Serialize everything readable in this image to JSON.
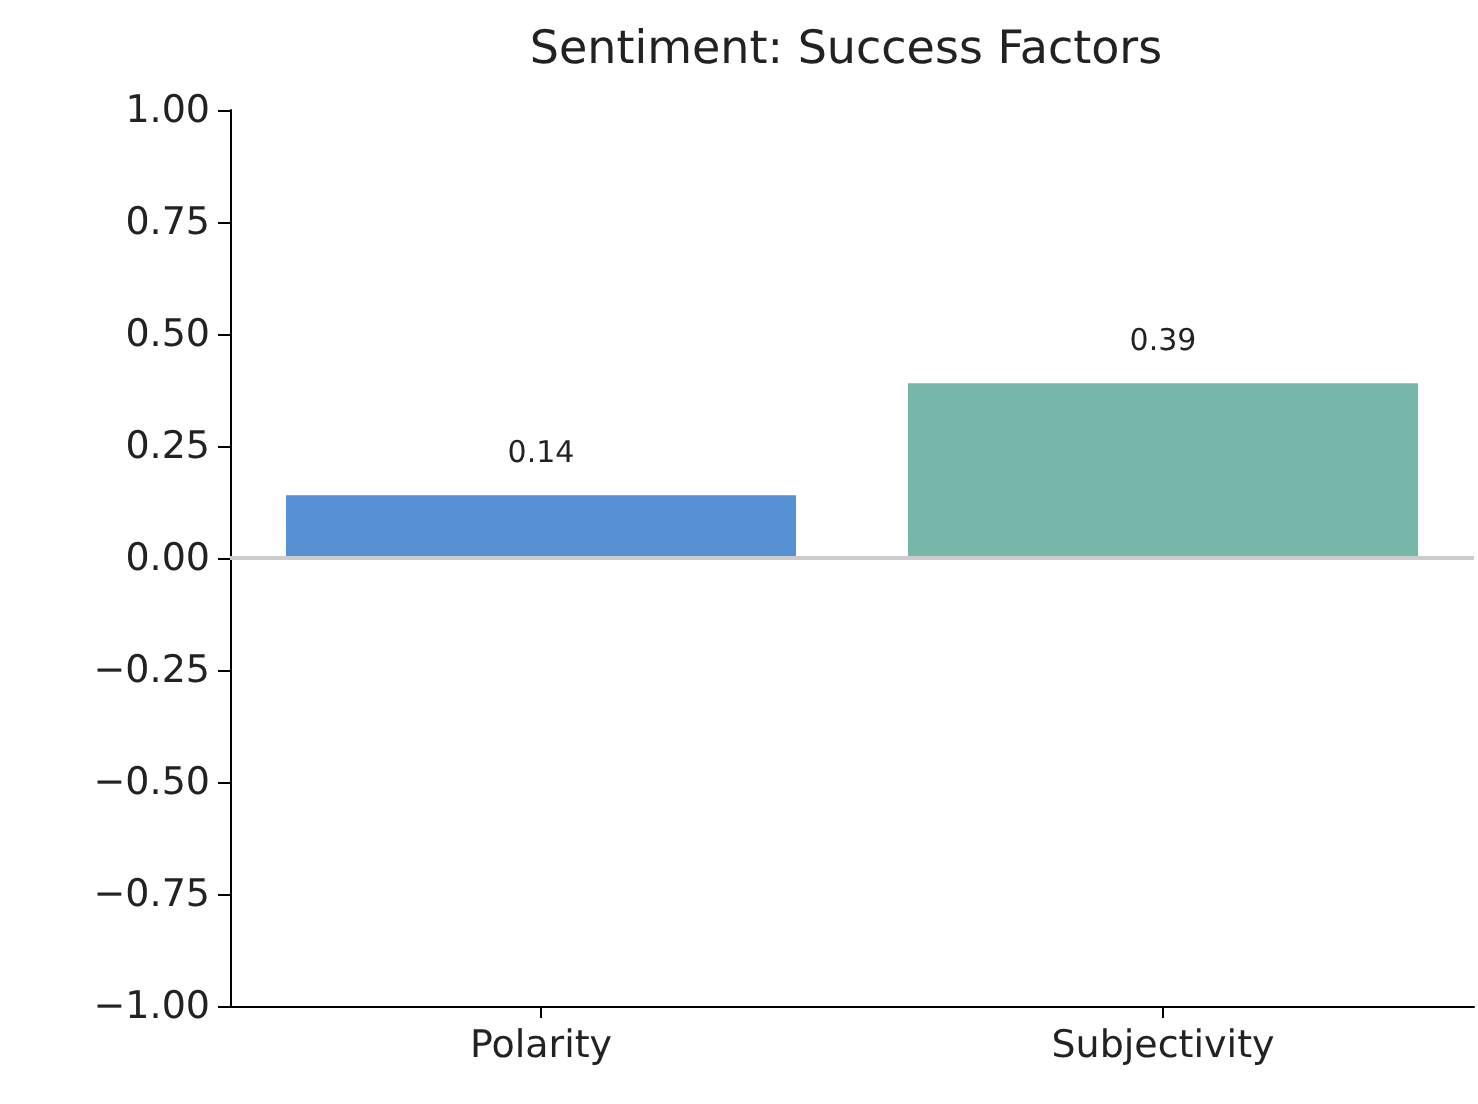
{
  "chart_data": {
    "type": "bar",
    "title": "Sentiment: Success Factors",
    "categories": [
      "Polarity",
      "Subjectivity"
    ],
    "values": [
      0.14,
      0.39
    ],
    "colors": [
      "#5591d3",
      "#76b7a9"
    ],
    "ylim": [
      -1,
      1
    ],
    "yticks": [
      {
        "value": -1,
        "label": "−1.00"
      },
      {
        "value": -0.75,
        "label": "−0.75"
      },
      {
        "value": -0.5,
        "label": "−0.50"
      },
      {
        "value": -0.25,
        "label": "−0.25"
      },
      {
        "value": 0,
        "label": "0.00"
      },
      {
        "value": 0.25,
        "label": "0.25"
      },
      {
        "value": 0.5,
        "label": "0.50"
      },
      {
        "value": 0.75,
        "label": "0.75"
      },
      {
        "value": 1,
        "label": "1.00"
      }
    ],
    "ref_lines": [
      {
        "axis": "y",
        "value": 0,
        "color": "#cccccc"
      }
    ],
    "data_labels": true,
    "grid": false
  }
}
